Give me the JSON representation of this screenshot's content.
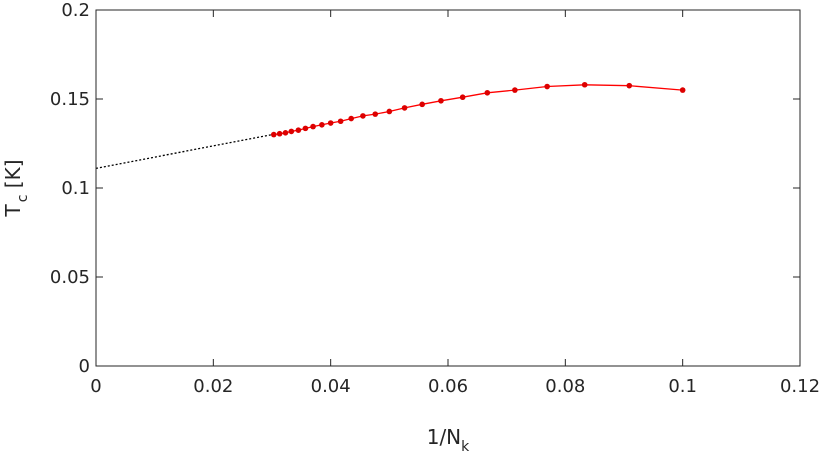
{
  "chart_data": {
    "type": "line",
    "title": "",
    "xlabel": {
      "main": "1/N",
      "sub": "k"
    },
    "ylabel": {
      "main": "T",
      "sub": "c",
      "suffix": " [K]"
    },
    "xlim": [
      0,
      0.12
    ],
    "ylim": [
      0,
      0.2
    ],
    "xticks": [
      0,
      0.02,
      0.04,
      0.06,
      0.08,
      0.1,
      0.12
    ],
    "xtick_labels": [
      "0",
      "0.02",
      "0.04",
      "0.06",
      "0.08",
      "0.1",
      "0.12"
    ],
    "yticks": [
      0,
      0.05,
      0.1,
      0.15,
      0.2
    ],
    "ytick_labels": [
      "0",
      "0.05",
      "0.1",
      "0.15",
      "0.2"
    ],
    "grid": false,
    "series": [
      {
        "style": "solid-line-with-markers",
        "color": "#ff0000",
        "marker_color": "#dd0000",
        "x": [
          0.1,
          0.0909,
          0.0833,
          0.0769,
          0.0714,
          0.0667,
          0.0625,
          0.0588,
          0.0556,
          0.0526,
          0.05,
          0.0476,
          0.0455,
          0.0435,
          0.0417,
          0.04,
          0.0385,
          0.037,
          0.0357,
          0.0345,
          0.0333,
          0.0323,
          0.0313,
          0.0303
        ],
        "y": [
          0.155,
          0.1575,
          0.158,
          0.157,
          0.155,
          0.1535,
          0.151,
          0.149,
          0.147,
          0.145,
          0.143,
          0.1415,
          0.1405,
          0.139,
          0.1375,
          0.1365,
          0.1355,
          0.1345,
          0.1335,
          0.1325,
          0.1318,
          0.131,
          0.1305,
          0.13
        ]
      },
      {
        "style": "dotted-extrapolation",
        "color": "#000000",
        "x": [
          0,
          0.03
        ],
        "y": [
          0.111,
          0.13
        ]
      }
    ]
  }
}
